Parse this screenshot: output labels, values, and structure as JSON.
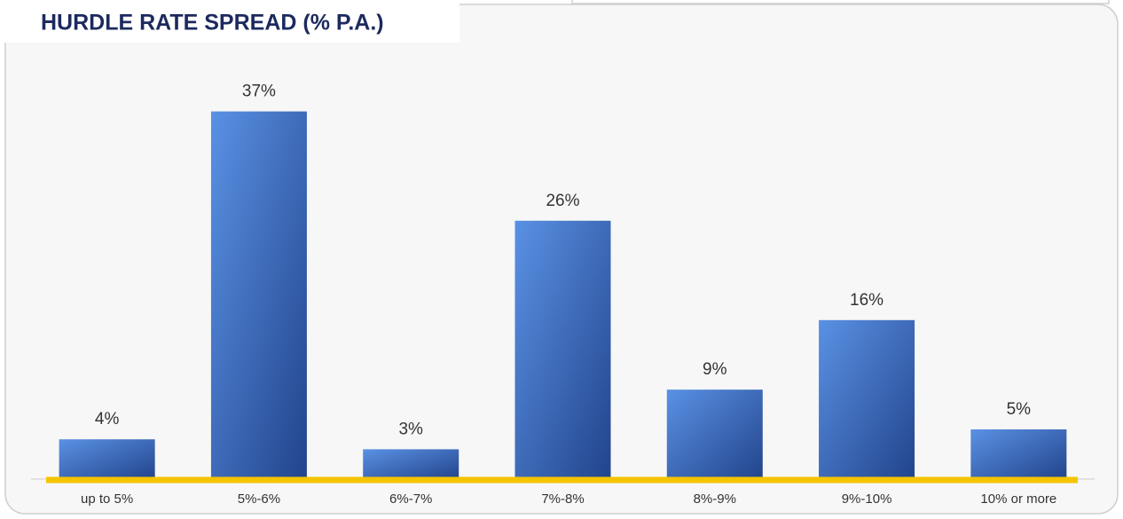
{
  "chart_data": {
    "type": "bar",
    "title": "HURDLE RATE SPREAD (% P.A.)",
    "categories": [
      "up to 5%",
      "5%-6%",
      "6%-7%",
      "7%-8%",
      "8%-9%",
      "9%-10%",
      "10% or more"
    ],
    "values": [
      4,
      37,
      3,
      26,
      9,
      16,
      5
    ],
    "value_labels": [
      "4%",
      "37%",
      "3%",
      "26%",
      "9%",
      "16%",
      "5%"
    ],
    "color": [
      "#5a91e4",
      "#22448c"
    ],
    "baseline_color": "#f5c400"
  }
}
